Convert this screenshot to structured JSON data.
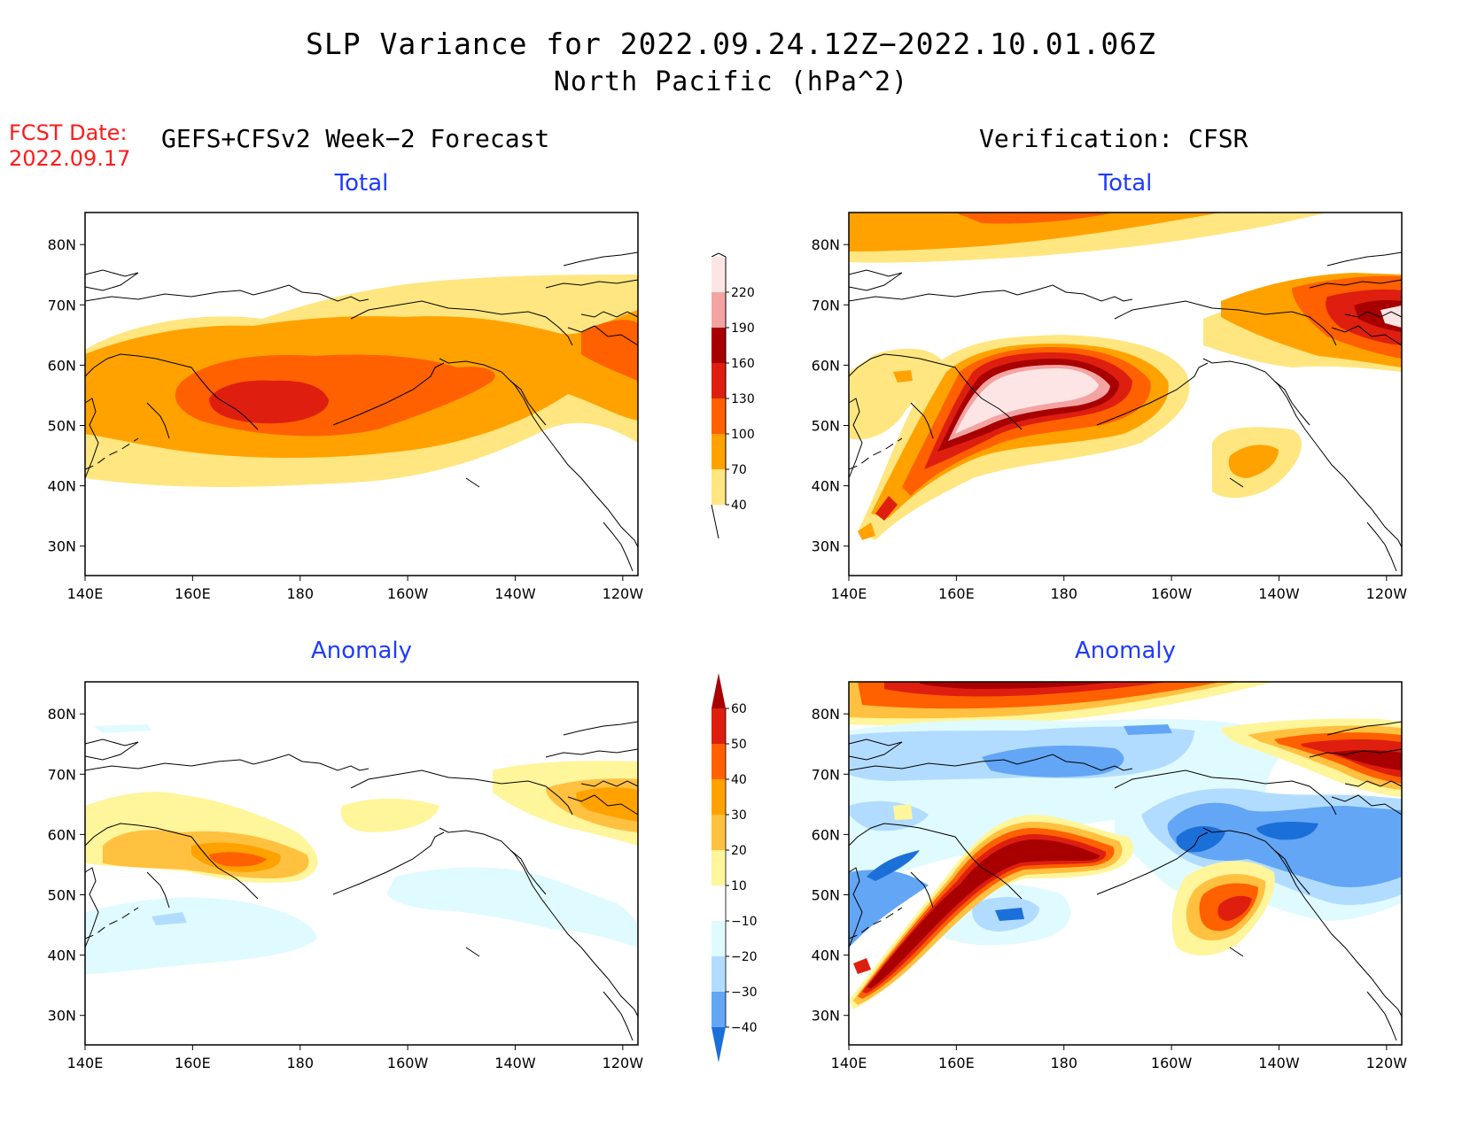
{
  "header": {
    "title_line1": "SLP Variance for 2022.09.24.12Z−2022.10.01.06Z",
    "title_line2": "North Pacific (hPa^2)",
    "fcst_label": "FCST Date:",
    "fcst_date": "2022.09.17",
    "left_column_title": "GEFS+CFSv2 Week−2 Forecast",
    "right_column_title": "Verification: CFSR"
  },
  "panels": {
    "forecast_total": {
      "title": "Total"
    },
    "forecast_anomaly": {
      "title": "Anomaly"
    },
    "verification_total": {
      "title": "Total"
    },
    "verification_anomaly": {
      "title": "Anomaly"
    }
  },
  "axes": {
    "x_ticks": [
      "140E",
      "160E",
      "180",
      "160W",
      "140W",
      "120W"
    ],
    "y_ticks": [
      "80N",
      "70N",
      "60N",
      "50N",
      "40N",
      "30N"
    ]
  },
  "colorbars": {
    "total": {
      "levels": [
        "220",
        "190",
        "160",
        "130",
        "100",
        "70",
        "40"
      ],
      "colors": [
        "#fde5e5",
        "#f4a3a3",
        "#a80000",
        "#de1f0f",
        "#ff6000",
        "#ffa200",
        "#ffe680"
      ]
    },
    "anomaly": {
      "levels": [
        "60",
        "50",
        "40",
        "30",
        "20",
        "10",
        "−10",
        "−20",
        "−30",
        "−40"
      ],
      "colors": [
        "#a80000",
        "#de1f0f",
        "#ff6000",
        "#ffa200",
        "#ffc13f",
        "#fff59b",
        "#ffffff",
        "#e0fbff",
        "#b2dcff",
        "#63a6f5",
        "#1b6fd9"
      ]
    }
  },
  "colors": {
    "title_blue": "#1f3bff",
    "fcst_red": "#ff1a1a"
  }
}
